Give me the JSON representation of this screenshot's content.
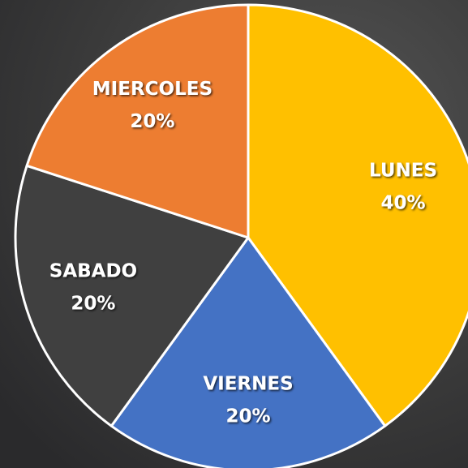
{
  "chart_data": {
    "type": "pie",
    "categories": [
      "LUNES",
      "VIERNES",
      "SABADO",
      "MIERCOLES"
    ],
    "values": [
      40,
      20,
      20,
      20
    ],
    "value_labels": [
      "40%",
      "20%",
      "20%",
      "20%"
    ],
    "colors": [
      "#ffc000",
      "#4472c4",
      "#404040",
      "#ed7d31"
    ]
  }
}
